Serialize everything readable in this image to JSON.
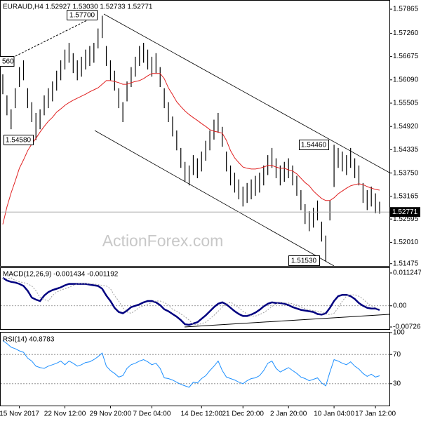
{
  "chart_data": [
    {
      "type": "ohlc",
      "title": "EURAUD,H4  1.52927 1.53030 1.52733 1.52771",
      "watermark": "ActionForex.com",
      "color": "#000000",
      "ma_color": "#e02020",
      "highs": [
        1.5623,
        1.557,
        1.5535,
        1.5588,
        1.5641,
        1.5658,
        1.5588,
        1.5553,
        1.5526,
        1.5535,
        1.557,
        1.5588,
        1.5605,
        1.5632,
        1.5658,
        1.5685,
        1.5702,
        1.5676,
        1.5658,
        1.5667,
        1.5685,
        1.5694,
        1.5702,
        1.5738,
        1.577,
        1.5694,
        1.5658,
        1.5632,
        1.5588,
        1.5553,
        1.5605,
        1.5641,
        1.5667,
        1.5694,
        1.5702,
        1.5685,
        1.5667,
        1.5676,
        1.5641,
        1.5588,
        1.5553,
        1.5517,
        1.5482,
        1.5438,
        1.5403,
        1.5394,
        1.542,
        1.5412,
        1.5429,
        1.5456,
        1.5482,
        1.5509,
        1.5526,
        1.5491,
        1.5429,
        1.5394,
        1.5376,
        1.5359,
        1.5341,
        1.535,
        1.5359,
        1.5368,
        1.5376,
        1.5394,
        1.542,
        1.5438,
        1.5412,
        1.5394,
        1.5403,
        1.5412,
        1.5394,
        1.5368,
        1.5332,
        1.5297,
        1.5279,
        1.5288,
        1.5306,
        1.5253,
        1.5218,
        1.5306,
        1.5446,
        1.5438,
        1.5429,
        1.542,
        1.5438,
        1.5412,
        1.5394,
        1.535,
        1.5332,
        1.5341,
        1.5324,
        1.5303
      ],
      "lows": [
        1.5573,
        1.552,
        1.5485,
        1.5538,
        1.5591,
        1.5608,
        1.5538,
        1.5503,
        1.5458,
        1.5485,
        1.552,
        1.5538,
        1.5555,
        1.5582,
        1.5608,
        1.5635,
        1.5652,
        1.5626,
        1.5608,
        1.5617,
        1.5635,
        1.5644,
        1.5652,
        1.5688,
        1.5714,
        1.5644,
        1.5608,
        1.5582,
        1.5538,
        1.5503,
        1.5555,
        1.5591,
        1.5617,
        1.5644,
        1.5652,
        1.5635,
        1.5617,
        1.5626,
        1.5591,
        1.5538,
        1.5503,
        1.5467,
        1.5432,
        1.5388,
        1.5353,
        1.5344,
        1.537,
        1.5362,
        1.5379,
        1.5406,
        1.5432,
        1.5459,
        1.5476,
        1.5441,
        1.5379,
        1.5344,
        1.5326,
        1.5309,
        1.5291,
        1.53,
        1.5309,
        1.5318,
        1.5326,
        1.5344,
        1.537,
        1.5388,
        1.5362,
        1.5344,
        1.5353,
        1.5362,
        1.5344,
        1.5318,
        1.5282,
        1.5247,
        1.5229,
        1.5238,
        1.5256,
        1.5203,
        1.5153,
        1.5256,
        1.534,
        1.5388,
        1.5379,
        1.537,
        1.5388,
        1.5362,
        1.5344,
        1.53,
        1.5282,
        1.5291,
        1.5274,
        1.5273
      ],
      "ma": [
        1.5246,
        1.529,
        1.5325,
        1.5355,
        1.5387,
        1.5408,
        1.5431,
        1.5448,
        1.5462,
        1.5478,
        1.5492,
        1.5505,
        1.5515,
        1.5528,
        1.5536,
        1.5545,
        1.5552,
        1.5558,
        1.5563,
        1.5568,
        1.5573,
        1.5579,
        1.5584,
        1.5589,
        1.5598,
        1.5607,
        1.5607,
        1.5605,
        1.5602,
        1.5598,
        1.5598,
        1.5602,
        1.5605,
        1.5607,
        1.5612,
        1.5619,
        1.5625,
        1.5625,
        1.5625,
        1.5612,
        1.5589,
        1.5572,
        1.5554,
        1.5542,
        1.5531,
        1.5522,
        1.5514,
        1.5507,
        1.5499,
        1.5492,
        1.5484,
        1.548,
        1.5478,
        1.5475,
        1.5457,
        1.5431,
        1.5413,
        1.5401,
        1.539,
        1.5387,
        1.5385,
        1.5385,
        1.5387,
        1.539,
        1.5394,
        1.5394,
        1.539,
        1.5387,
        1.5387,
        1.5383,
        1.538,
        1.5373,
        1.5362,
        1.5351,
        1.5343,
        1.533,
        1.532,
        1.5311,
        1.5306,
        1.5306,
        1.5313,
        1.5323,
        1.533,
        1.5337,
        1.5343,
        1.5346,
        1.5348,
        1.5346,
        1.5341,
        1.5337,
        1.5334,
        1.5332
      ],
      "last_price": 1.52771,
      "annotations": [
        "1.57700",
        "560",
        "1.54580",
        "1.54460",
        "1.51530"
      ],
      "ylim": [
        1.514,
        1.5806
      ],
      "grid": false,
      "yticks": [
        1.57865,
        {
          "value": 1.5726,
          "label": "1.57260"
        },
        1.56675,
        {
          "value": 1.5609,
          "label": "1.56090"
        },
        1.55505,
        {
          "value": 1.5492,
          "label": "1.54920"
        },
        1.54335,
        {
          "value": 1.5375,
          "label": "1.53750"
        },
        1.53165,
        1.52595,
        {
          "value": 1.5201,
          "label": "1.52010"
        },
        1.51475
      ]
    },
    {
      "type": "line",
      "title": "MACD(12,26,9) -0.001434 -0.001192",
      "grid": true,
      "ylim": [
        -0.007263,
        0.011247
      ],
      "yticks": [
        0.011247,
        {
          "value": 0,
          "label": "0.00"
        },
        -0.007263
      ],
      "series": [
        {
          "color": "#000080",
          "values": [
            0.00959,
            0.00866,
            0.00819,
            0.00796,
            0.00749,
            0.00679,
            0.00515,
            0.00281,
            0.00211,
            0.00164,
            0.00351,
            0.00468,
            0.00538,
            0.00585,
            0.00632,
            0.00702,
            0.00749,
            0.00749,
            0.00749,
            0.00749,
            0.00749,
            0.00725,
            0.00702,
            0.00679,
            0.00585,
            0.00351,
            0.00164,
            -0.0007,
            -0.00211,
            -0.00257,
            -0.00164,
            -0.00047,
            0,
            0.00047,
            0.00117,
            0.00164,
            0.00164,
            0.00117,
            0.00023,
            -0.00117,
            -0.00187,
            -0.00281,
            -0.00374,
            -0.00491,
            -0.00632,
            -0.00655,
            -0.00608,
            -0.00562,
            -0.00445,
            -0.00328,
            -0.00187,
            -0.00047,
            0.0007,
            0.00117,
            0.00047,
            -0.0007,
            -0.00187,
            -0.00281,
            -0.00351,
            -0.00351,
            -0.00304,
            -0.00234,
            -0.0014,
            -0.00023,
            0.0007,
            0.00117,
            0.00094,
            0.00094,
            0.0007,
            0.00023,
            -0.00047,
            -0.00094,
            -0.0014,
            -0.00164,
            -0.00187,
            -0.00211,
            -0.00281,
            -0.00304,
            -0.00257,
            -0.0007,
            0.00164,
            0.00328,
            0.00374,
            0.00374,
            0.00328,
            0.00234,
            0.00094,
            0,
            -0.0007,
            -0.00094,
            -0.00094,
            -0.001434
          ]
        },
        {
          "color": "#a0a0a0",
          "values": [
            0.0095,
            0.0092,
            0.00959,
            0.00866,
            0.00819,
            0.00796,
            0.00749,
            0.00679,
            0.00515,
            0.00281,
            0.00211,
            0.00164,
            0.00351,
            0.00468,
            0.00538,
            0.00585,
            0.00632,
            0.00702,
            0.00749,
            0.00749,
            0.00749,
            0.00749,
            0.00749,
            0.00725,
            0.00702,
            0.00679,
            0.00585,
            0.00351,
            0.00164,
            -0.0007,
            -0.00211,
            -0.00257,
            -0.00164,
            -0.00047,
            0,
            0.00047,
            0.00117,
            0.00164,
            0.00164,
            0.00117,
            0.00023,
            -0.00117,
            -0.00187,
            -0.00281,
            -0.00374,
            -0.00491,
            -0.00632,
            -0.00655,
            -0.00608,
            -0.00562,
            -0.00445,
            -0.00328,
            -0.00187,
            -0.00047,
            0.0007,
            0.00117,
            0.00047,
            -0.0007,
            -0.00187,
            -0.00281,
            -0.00351,
            -0.00351,
            -0.00304,
            -0.00234,
            -0.0014,
            -0.00023,
            0.0007,
            0.00117,
            0.00094,
            0.00094,
            0.0007,
            0.00023,
            -0.00047,
            -0.00094,
            -0.0014,
            -0.00164,
            -0.00187,
            -0.00211,
            -0.00281,
            -0.00304,
            -0.00257,
            -0.0007,
            0.00164,
            0.00328,
            0.00374,
            0.00374,
            0.00328,
            0.00234,
            0.00094,
            0,
            -0.0007,
            -0.001192
          ]
        }
      ]
    },
    {
      "type": "line",
      "title": "RSI(14) 40.8783",
      "grid": true,
      "ylim": [
        0,
        100
      ],
      "yticks": [
        100,
        70,
        30
      ],
      "categories": [
        null,
        null,
        null,
        null,
        "15 Nov 2017",
        null,
        null,
        null,
        null,
        null,
        null,
        null,
        null,
        null,
        null,
        "22 Nov 12:00",
        null,
        null,
        null,
        null,
        null,
        null,
        null,
        null,
        null,
        null,
        "29 Nov 20:00",
        null,
        null,
        null,
        null,
        null,
        null,
        null,
        null,
        null,
        "7 Dec 04:00",
        null,
        null,
        null,
        null,
        null,
        null,
        null,
        null,
        null,
        null,
        null,
        "14 Dec 12:00",
        null,
        null,
        null,
        null,
        null,
        null,
        null,
        null,
        null,
        "21 Dec 20:00",
        null,
        null,
        null,
        null,
        null,
        null,
        null,
        null,
        null,
        null,
        "2 Jan 20:00",
        null,
        null,
        null,
        null,
        null,
        null,
        null,
        null,
        null,
        null,
        "10 Jan 04:00",
        null,
        null,
        null,
        null,
        null,
        null,
        null,
        null,
        null,
        "17 Jan 12:00",
        null
      ],
      "series": [
        {
          "color": "#1e90ff",
          "values": [
            89,
            85,
            80,
            78,
            75,
            73,
            65,
            61,
            54,
            52,
            51,
            54,
            56,
            58,
            61,
            56,
            61,
            58,
            54,
            56,
            59,
            60,
            63,
            67,
            72,
            54,
            48,
            44,
            39,
            41,
            51,
            56,
            58,
            61,
            63,
            60,
            56,
            58,
            51,
            38,
            37,
            35,
            32,
            29,
            27,
            25,
            32,
            31,
            37,
            41,
            48,
            54,
            61,
            48,
            39,
            37,
            35,
            32,
            30,
            34,
            37,
            38,
            41,
            48,
            58,
            61,
            51,
            46,
            49,
            52,
            48,
            44,
            39,
            37,
            34,
            36,
            38,
            31,
            27,
            46,
            63,
            61,
            58,
            56,
            60,
            54,
            50,
            44,
            40,
            43,
            39,
            40.8783
          ]
        }
      ]
    }
  ]
}
